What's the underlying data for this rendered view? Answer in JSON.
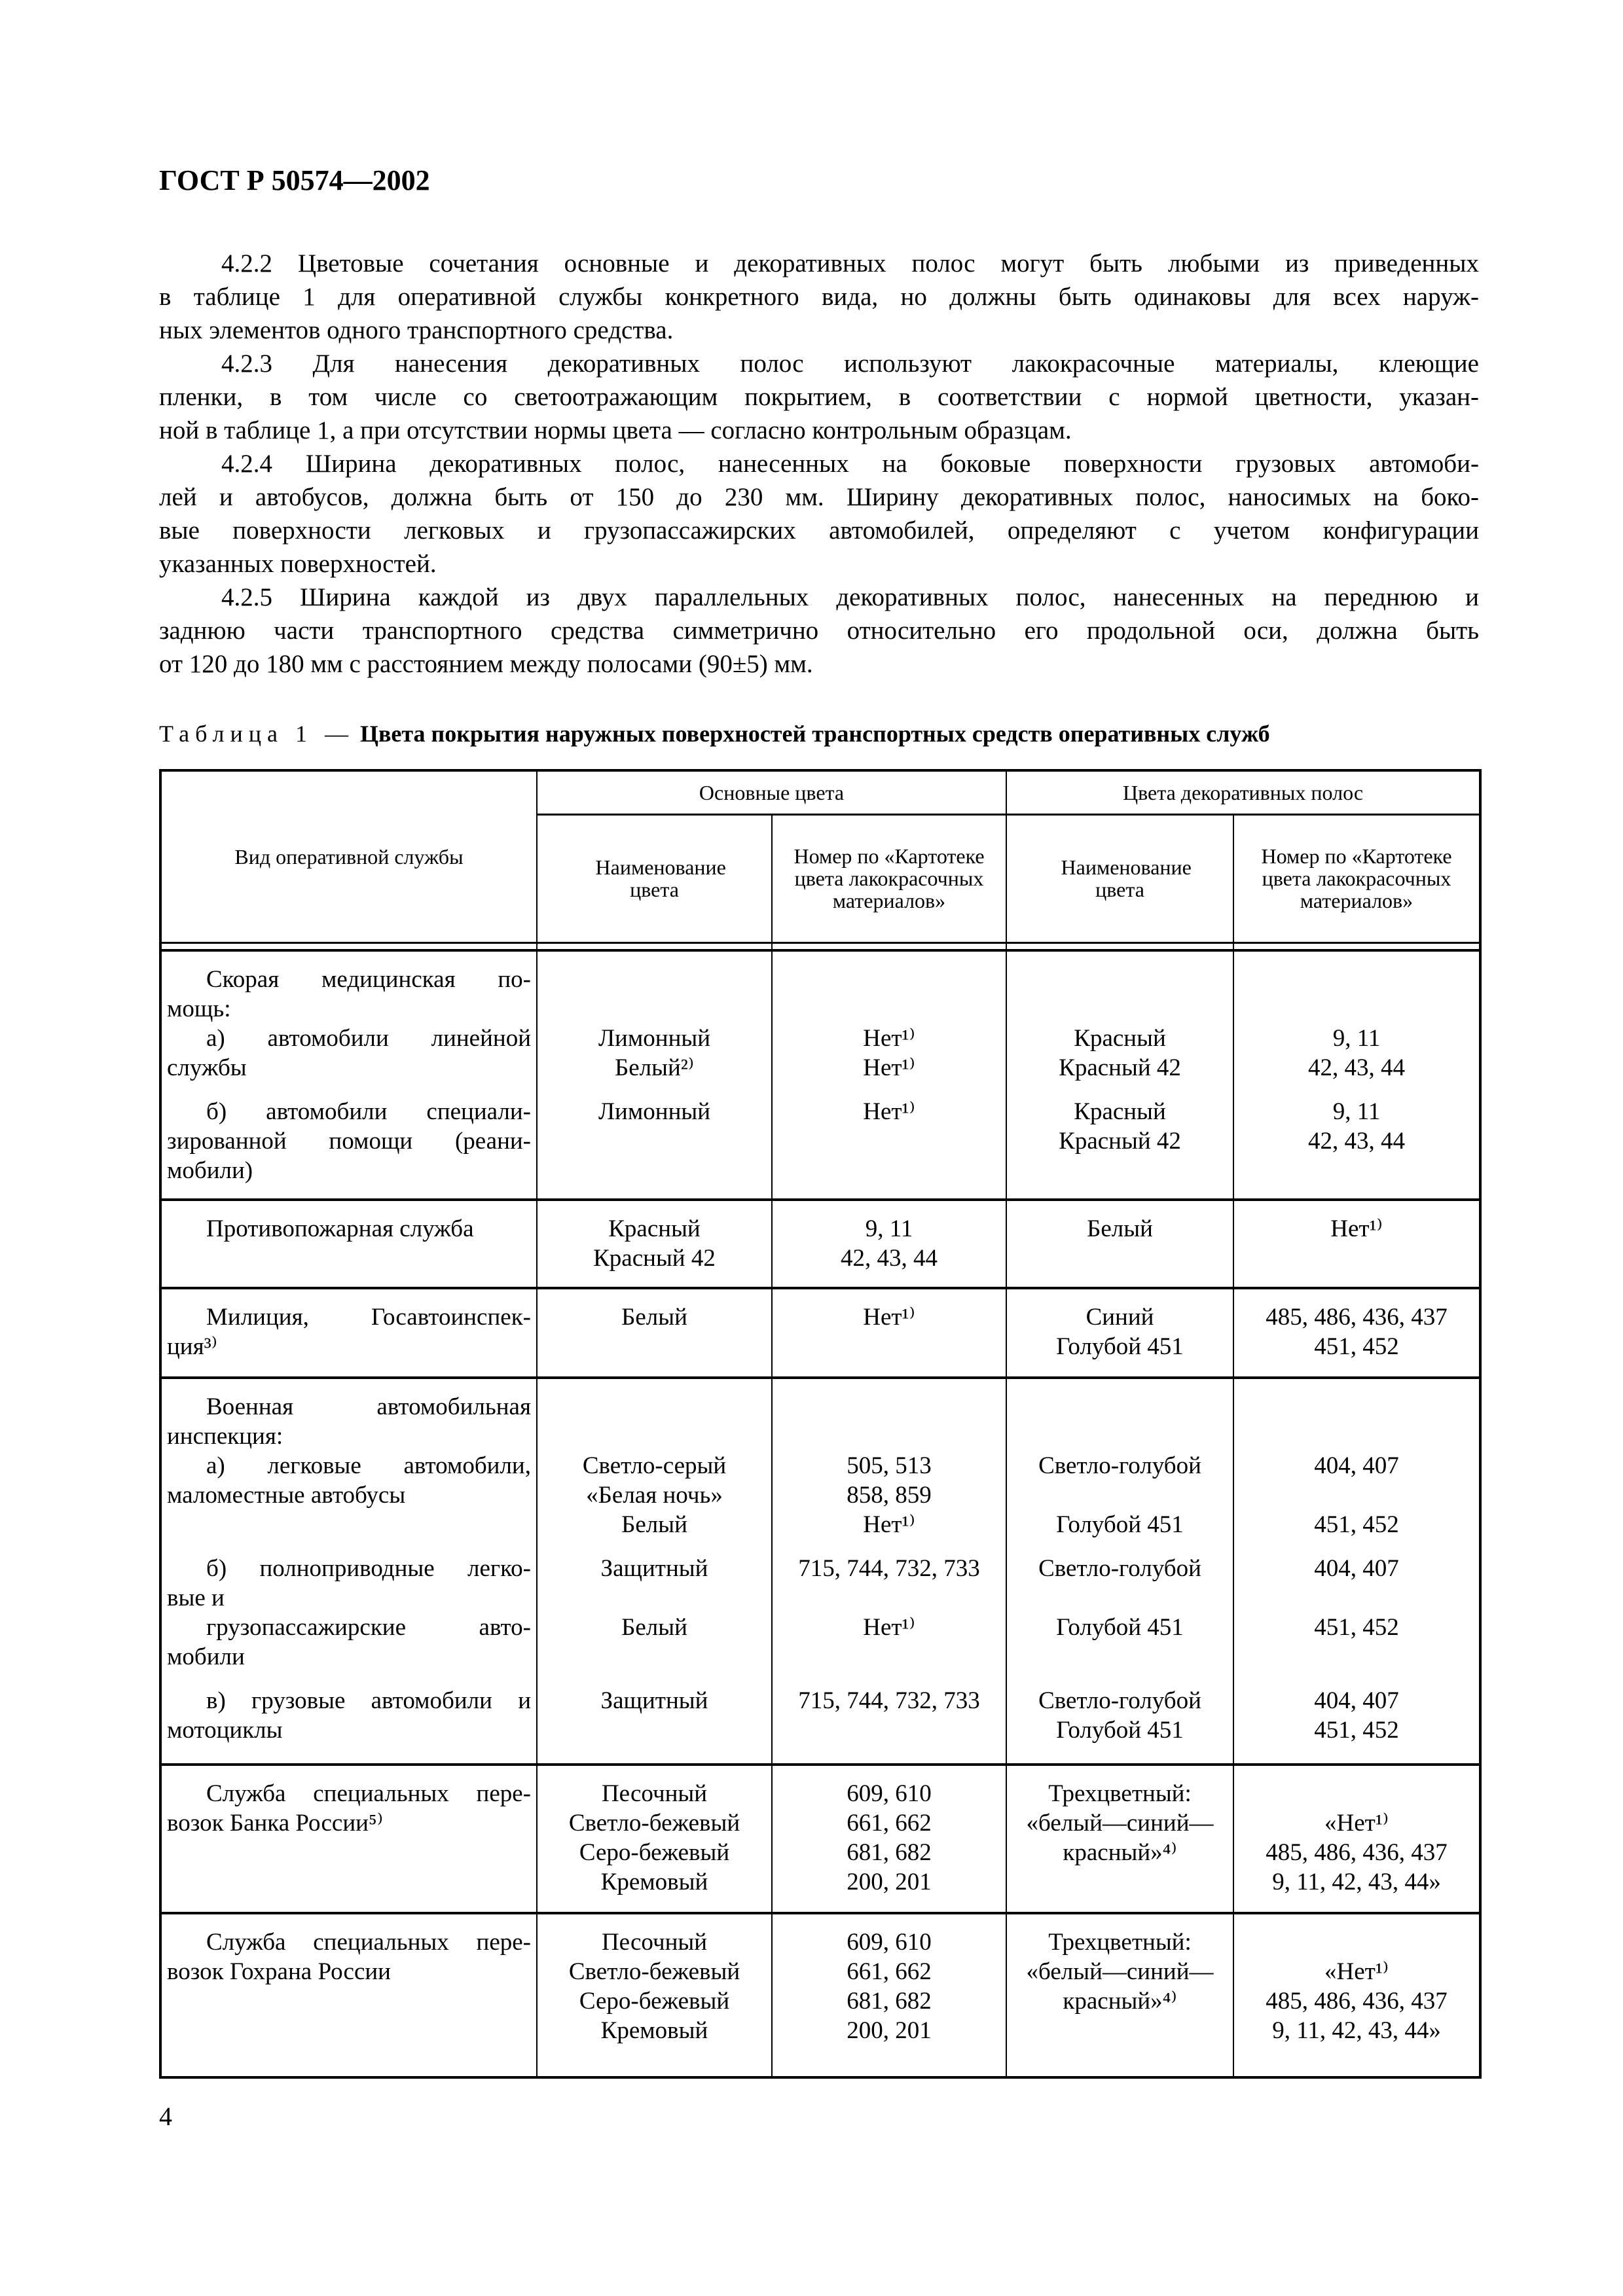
{
  "header": {
    "title": "ГОСТ Р 50574—2002"
  },
  "paragraphs": [
    [
      "4.2.2 Цветовые сочетания основные и декоративных полос могут быть любыми из приведенных",
      "в таблице 1 для оперативной службы конкретного вида, но должны быть одинаковы для всех наруж-",
      "ных элементов одного транспортного средства."
    ],
    [
      "4.2.3 Для нанесения декоративных полос используют лакокрасочные материалы, клеющие",
      "пленки, в том числе со светоотражающим покрытием, в соответствии с нормой цветности, указан-",
      "ной в таблице 1, а при отсутствии нормы цвета — согласно контрольным образцам."
    ],
    [
      "4.2.4 Ширина декоративных полос, нанесенных на боковые поверхности грузовых автомоби-",
      "лей и автобусов, должна быть от 150 до 230 мм. Ширину декоративных полос, наносимых на боко-",
      "вые поверхности легковых и грузопассажирских автомобилей, определяют с учетом конфигурации",
      "указанных поверхностей."
    ],
    [
      "4.2.5 Ширина каждой из двух параллельных декоративных полос, нанесенных на переднюю и",
      "заднюю части транспортного средства симметрично относительно его продольной оси, должна быть",
      "от 120 до 180 мм с расстоянием между полосами (90±5) мм."
    ]
  ],
  "table": {
    "caption_label": "Таблица 1 —",
    "caption_title": "Цвета покрытия наружных поверхностей транспортных средств оперативных служб",
    "headers": {
      "service": "Вид оперативной службы",
      "main_colors": "Основные цвета",
      "stripe_colors": "Цвета декоративных полос",
      "name": "Наименование цвета",
      "number": "Номер по «Картотеке цвета лакокрасочных материалов»"
    },
    "rows": [
      {
        "groups": [
          [
            [
              "Скорая медицинская по-",
              "мощь:"
            ],
            [],
            [],
            [],
            []
          ],
          [
            [
              "а) автомобили линейной",
              "службы"
            ],
            [
              "Лимонный",
              "Белый²⁾"
            ],
            [
              "Нет¹⁾",
              "Нет¹⁾"
            ],
            [
              "Красный",
              "Красный 42"
            ],
            [
              "9, 11",
              "42, 43, 44"
            ]
          ],
          [
            [
              "б) автомобили специали-",
              "зированной помощи (реани-",
              "мобили)"
            ],
            [
              "Лимонный"
            ],
            [
              "Нет¹⁾"
            ],
            [
              "Красный",
              "Красный 42"
            ],
            [
              "9, 11",
              "42, 43, 44"
            ]
          ]
        ]
      },
      {
        "groups": [
          [
            [
              "Противопожарная служба"
            ],
            [
              "Красный",
              "Красный 42"
            ],
            [
              "9, 11",
              "42, 43, 44"
            ],
            [
              "Белый"
            ],
            [
              "Нет¹⁾"
            ]
          ]
        ]
      },
      {
        "groups": [
          [
            [
              "Милиция, Госавтоинспек-",
              "ция³⁾"
            ],
            [
              "Белый"
            ],
            [
              "Нет¹⁾"
            ],
            [
              "Синий",
              "Голубой 451"
            ],
            [
              "485, 486, 436, 437",
              "451, 452"
            ]
          ]
        ]
      },
      {
        "groups": [
          [
            [
              "Военная автомобильная",
              "инспекция:"
            ],
            [],
            [],
            [],
            []
          ],
          [
            [
              "а) легковые автомобили,",
              "маломестные автобусы"
            ],
            [
              "Светло-серый",
              "«Белая ночь»",
              "Белый"
            ],
            [
              "505, 513",
              "858, 859",
              "Нет¹⁾"
            ],
            [
              "Светло-голубой",
              "",
              "Голубой 451"
            ],
            [
              "404, 407",
              "",
              "451, 452"
            ]
          ],
          [
            [
              "б) полноприводные легко-",
              "вые и"
            ],
            [
              "Защитный"
            ],
            [
              "715, 744, 732, 733"
            ],
            [
              "Светло-голубой"
            ],
            [
              "404, 407"
            ]
          ],
          [
            [
              "грузопассажирские авто-",
              "мобили"
            ],
            [
              "Белый"
            ],
            [
              "Нет¹⁾"
            ],
            [
              "Голубой 451"
            ],
            [
              "451, 452"
            ]
          ],
          [
            [
              "в) грузовые автомобили и",
              "мотоциклы"
            ],
            [
              "Защитный"
            ],
            [
              "715, 744, 732, 733"
            ],
            [
              "Светло-голубой",
              "Голубой 451"
            ],
            [
              "404, 407",
              "451, 452"
            ]
          ]
        ]
      },
      {
        "groups": [
          [
            [
              "Служба специальных пере-",
              "возок Банка России⁵⁾"
            ],
            [
              "Песочный",
              "Светло-бежевый",
              "Серо-бежевый",
              "Кремовый"
            ],
            [
              "609, 610",
              "661, 662",
              "681, 682",
              "200, 201"
            ],
            [
              "Трехцветный:",
              "«белый—синий—",
              "красный»⁴⁾"
            ],
            [
              "",
              "«Нет¹⁾",
              "485, 486, 436, 437",
              "9, 11, 42, 43, 44»"
            ]
          ]
        ]
      },
      {
        "groups": [
          [
            [
              "Служба специальных пере-",
              "возок Гохрана России"
            ],
            [
              "Песочный",
              "Светло-бежевый",
              "Серо-бежевый",
              "Кремовый"
            ],
            [
              "609, 610",
              "661, 662",
              "681, 682",
              "200, 201"
            ],
            [
              "Трехцветный:",
              "«белый—синий—",
              "красный»⁴⁾"
            ],
            [
              "",
              "«Нет¹⁾",
              "485, 486, 436, 437",
              "9, 11, 42, 43, 44»"
            ]
          ]
        ]
      }
    ]
  },
  "page_number": "4"
}
